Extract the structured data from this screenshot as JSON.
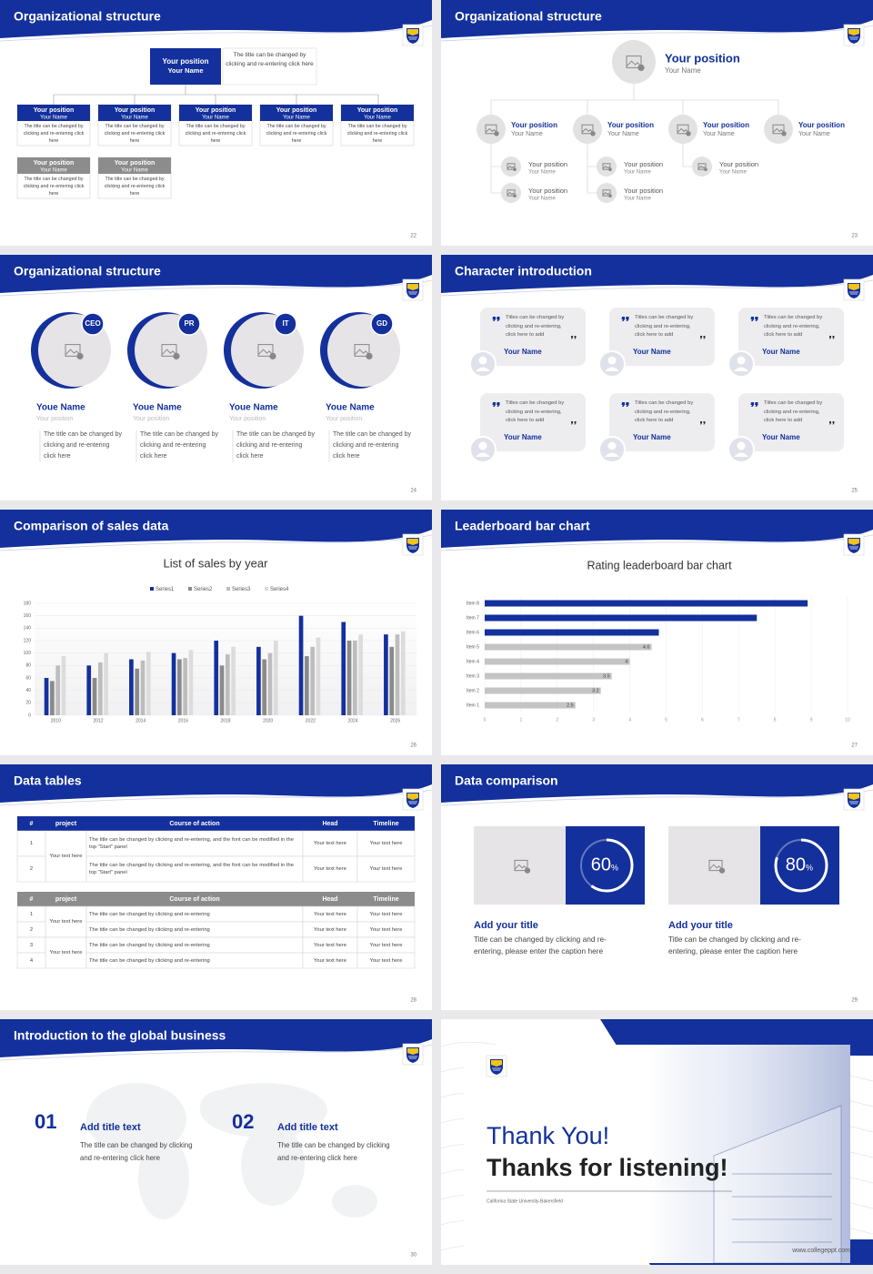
{
  "slides": [
    {
      "title": "Organizational structure",
      "page": "22",
      "top": {
        "position": "Your position",
        "name": "Your Name"
      },
      "note": "The title can be changed by clicking and re-entering click here",
      "boxes": [
        {
          "position": "Your position",
          "name": "Your Name",
          "text": "The title can be changed by clicking and re-entering click here"
        },
        {
          "position": "Your position",
          "name": "Your Name",
          "text": "The title can be changed by clicking and re-entering click here"
        },
        {
          "position": "Your position",
          "name": "Your Name",
          "text": "The title can be changed by clicking and re-entering click here"
        },
        {
          "position": "Your position",
          "name": "Your Name",
          "text": "The title can be changed by clicking and re-entering click here"
        },
        {
          "position": "Your position",
          "name": "Your Name",
          "text": "The title can be changed by clicking and re-entering click here"
        },
        {
          "position": "Your position",
          "name": "Your Name",
          "text": "The title can be changed by clicking and re-entering click here"
        },
        {
          "position": "Your position",
          "name": "Your Name",
          "text": "The title can be changed by clicking and re-entering click here"
        }
      ]
    },
    {
      "title": "Organizational structure",
      "page": "23",
      "top": {
        "position": "Your position",
        "name": "Your Name"
      },
      "branches": [
        {
          "position": "Your position",
          "name": "Your Name"
        },
        {
          "position": "Your position",
          "name": "Your Name"
        },
        {
          "position": "Your position",
          "name": "Your Name"
        },
        {
          "position": "Your position",
          "name": "Your Name"
        }
      ],
      "leaves": [
        {
          "position": "Your position",
          "name": "Your Name"
        },
        {
          "position": "Your position",
          "name": "Your Name"
        },
        {
          "position": "Your position",
          "name": "Your Name"
        },
        {
          "position": "Your position",
          "name": "Your Name"
        },
        {
          "position": "Your position",
          "name": "Your Name"
        }
      ]
    },
    {
      "title": "Organizational structure",
      "page": "24",
      "people": [
        {
          "tag": "CEO",
          "name": "Youe Name",
          "position": "Your position",
          "text": "The title can be changed by clicking and re-entering click here"
        },
        {
          "tag": "PR",
          "name": "Youe Name",
          "position": "Your position",
          "text": "The title can be changed by clicking and re-entering click here"
        },
        {
          "tag": "IT",
          "name": "Youe Name",
          "position": "Your position",
          "text": "The title can be changed by clicking and re-entering click here"
        },
        {
          "tag": "GD",
          "name": "Youe Name",
          "position": "Your position",
          "text": "The title can be changed by clicking and re-entering click here"
        }
      ]
    },
    {
      "title": "Character introduction",
      "page": "25",
      "cards": [
        {
          "quote": "Titles can be changed by clicking and re-entering, click here to add",
          "name": "Your Name"
        },
        {
          "quote": "Titles can be changed by clicking and re-entering, click here to add",
          "name": "Your Name"
        },
        {
          "quote": "Titles can be changed by clicking and re-entering, click here to add",
          "name": "Your Name"
        },
        {
          "quote": "Titles can be changed by clicking and re-entering, click here to add",
          "name": "Your Name"
        },
        {
          "quote": "Titles can be changed by clicking and re-entering, click here to add",
          "name": "Your Name"
        },
        {
          "quote": "Titles can be changed by clicking and re-entering, click here to add",
          "name": "Your Name"
        }
      ]
    },
    {
      "title": "Comparison of sales data",
      "page": "26"
    },
    {
      "title": "Leaderboard bar chart",
      "page": "27"
    },
    {
      "title": "Data tables",
      "page": "28",
      "tables": [
        {
          "header": [
            "#",
            "project",
            "Course of action",
            "Head",
            "Timeline"
          ],
          "rows": [
            [
              "1",
              "Your text here",
              "The title can be changed by clicking and re-entering, and the font can be modified in the top \"Start\" panel",
              "Your text here",
              "Your text here"
            ],
            [
              "2",
              null,
              "The title can be changed by clicking and re-entering, and the font can be modified in the top \"Start\" panel",
              "Your text here",
              "Your text here"
            ]
          ]
        },
        {
          "header": [
            "#",
            "project",
            "Course of action",
            "Head",
            "Timeline"
          ],
          "rows": [
            [
              "1",
              "Your text here",
              "The title can be changed by clicking and re-entering",
              "Your text here",
              "Your text here"
            ],
            [
              "2",
              null,
              "The title can be changed by clicking and re-entering",
              "Your text here",
              "Your text here"
            ],
            [
              "3",
              "Your text here",
              "The title can be changed by clicking and re-entering",
              "Your text here",
              "Your text here"
            ],
            [
              "4",
              null,
              "The title can be changed by clicking and re-entering",
              "Your text here",
              "Your text here"
            ]
          ]
        }
      ]
    },
    {
      "title": "Data comparison",
      "page": "29",
      "cards": [
        {
          "percent": 60,
          "unit": "%",
          "title": "Add your title",
          "text": "Title can be changed by clicking and re-entering, please enter the caption here"
        },
        {
          "percent": 80,
          "unit": "%",
          "title": "Add your title",
          "text": "Title can be changed by clicking and re-entering, please enter the caption here"
        }
      ]
    },
    {
      "title": "Introduction to the global business",
      "page": "30",
      "items": [
        {
          "number": "01",
          "title": "Add title text",
          "text": "The title can be changed by clicking and re-entering click here"
        },
        {
          "number": "02",
          "title": "Add title text",
          "text": "The title can be changed by clicking and re-entering click here"
        }
      ]
    },
    {
      "thanks": "Thank You!",
      "subtitle": "Thanks for listening!",
      "university": "California State University-Bakersfield",
      "url": "www.collegeppt.com"
    }
  ],
  "chart_data": [
    {
      "type": "bar",
      "title": "List of sales by year",
      "categories": [
        "2010",
        "2012",
        "2014",
        "2016",
        "2018",
        "2020",
        "2022",
        "2024",
        "2026"
      ],
      "series": [
        {
          "name": "Series1",
          "color": "#13309c",
          "values": [
            60,
            80,
            90,
            100,
            120,
            110,
            160,
            150,
            130
          ]
        },
        {
          "name": "Series2",
          "color": "#8a8a8a",
          "values": [
            55,
            60,
            75,
            90,
            80,
            90,
            95,
            120,
            110
          ]
        },
        {
          "name": "Series3",
          "color": "#bdbdbd",
          "values": [
            80,
            85,
            88,
            92,
            98,
            100,
            110,
            120,
            130
          ]
        },
        {
          "name": "Series4",
          "color": "#dcdcdc",
          "values": [
            95,
            100,
            102,
            105,
            110,
            120,
            125,
            130,
            135
          ]
        }
      ],
      "ylim": [
        0,
        180
      ],
      "yticks": [
        0,
        20,
        40,
        60,
        80,
        100,
        120,
        140,
        160,
        180
      ],
      "grid": true,
      "legend": "top"
    },
    {
      "type": "barh",
      "title": "Rating leaderboard bar chart",
      "categories": [
        "Item 1",
        "Item 2",
        "Item 3",
        "Item 4",
        "Item 5",
        "Item 6",
        "Item 7",
        "Item 8"
      ],
      "values": [
        2.5,
        3.2,
        3.5,
        4,
        4.6,
        4.8,
        7.5,
        8.9
      ],
      "value_labels": [
        "2.5",
        "3.2",
        "3.5",
        "4",
        "4.6",
        null,
        null,
        null
      ],
      "colors": [
        "#c4c4c4",
        "#c4c4c4",
        "#c4c4c4",
        "#c4c4c4",
        "#c4c4c4",
        "#13309c",
        "#13309c",
        "#13309c"
      ],
      "xlim": [
        0,
        10
      ],
      "xticks": [
        0,
        1,
        2,
        3,
        4,
        5,
        6,
        7,
        8,
        9,
        10
      ],
      "grid": true
    }
  ]
}
